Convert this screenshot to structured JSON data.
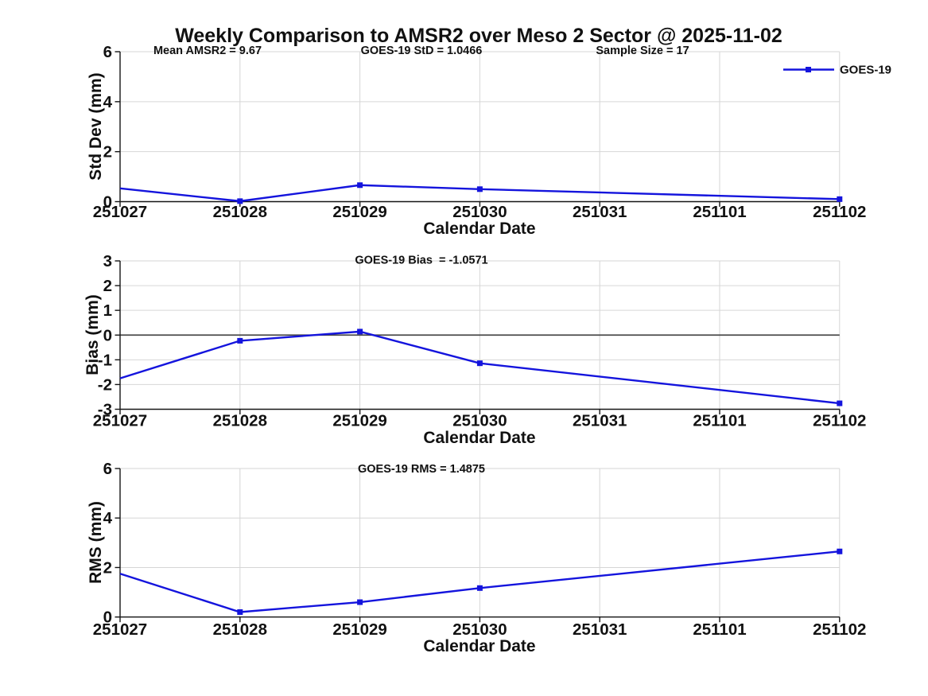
{
  "figure": {
    "title": "Weekly Comparison to AMSR2 over Meso 2 Sector @ 2025-11-02",
    "background": "#ffffff",
    "colors": {
      "line": "#1414dd",
      "marker": "#1414dd",
      "grid": "#d6d6d6",
      "axis": "#151515",
      "zero_line": "#4a4a4a",
      "text": "#111111"
    }
  },
  "legend": {
    "label": "GOES-19",
    "position": "top-right"
  },
  "x_axis": {
    "label": "Calendar Date",
    "categories": [
      "251027",
      "251028",
      "251029",
      "251030",
      "251031",
      "251101",
      "251102"
    ]
  },
  "chart_data": [
    {
      "id": "std_dev",
      "type": "line",
      "annotations": {
        "left": "Mean AMSR2 = 9.67",
        "center": "GOES-19 StD = 1.0466",
        "right": "Sample Size = 17"
      },
      "ylabel": "Std Dev (mm)",
      "xlabel": "Calendar Date",
      "ylim": [
        0,
        6
      ],
      "yticks": [
        0,
        2,
        4,
        6
      ],
      "grid": true,
      "series": [
        {
          "name": "GOES-19",
          "points": [
            {
              "x": "251027",
              "y": 0.53,
              "marker": false
            },
            {
              "x": "251028",
              "y": 0.02,
              "marker": true
            },
            {
              "x": "251029",
              "y": 0.66,
              "marker": true
            },
            {
              "x": "251030",
              "y": 0.5,
              "marker": true
            },
            {
              "x": "251102",
              "y": 0.1,
              "marker": true
            }
          ]
        }
      ]
    },
    {
      "id": "bias",
      "type": "line",
      "annotations": {
        "center": "GOES-19 Bias  = -1.0571"
      },
      "ylabel": "Bias (mm)",
      "xlabel": "Calendar Date",
      "ylim": [
        -3,
        3
      ],
      "yticks": [
        -3,
        -2,
        -1,
        0,
        1,
        2,
        3
      ],
      "zero_line": true,
      "grid": true,
      "series": [
        {
          "name": "GOES-19",
          "points": [
            {
              "x": "251027",
              "y": -1.75,
              "marker": false
            },
            {
              "x": "251028",
              "y": -0.23,
              "marker": true
            },
            {
              "x": "251029",
              "y": 0.14,
              "marker": true
            },
            {
              "x": "251030",
              "y": -1.14,
              "marker": true
            },
            {
              "x": "251102",
              "y": -2.76,
              "marker": true
            }
          ]
        }
      ]
    },
    {
      "id": "rms",
      "type": "line",
      "annotations": {
        "center": "GOES-19 RMS = 1.4875"
      },
      "ylabel": "RMS (mm)",
      "xlabel": "Calendar Date",
      "ylim": [
        0,
        6
      ],
      "yticks": [
        0,
        2,
        4,
        6
      ],
      "grid": true,
      "series": [
        {
          "name": "GOES-19",
          "points": [
            {
              "x": "251027",
              "y": 1.75,
              "marker": false
            },
            {
              "x": "251028",
              "y": 0.2,
              "marker": true
            },
            {
              "x": "251029",
              "y": 0.6,
              "marker": true
            },
            {
              "x": "251030",
              "y": 1.17,
              "marker": true
            },
            {
              "x": "251102",
              "y": 2.65,
              "marker": true
            }
          ]
        }
      ]
    }
  ]
}
